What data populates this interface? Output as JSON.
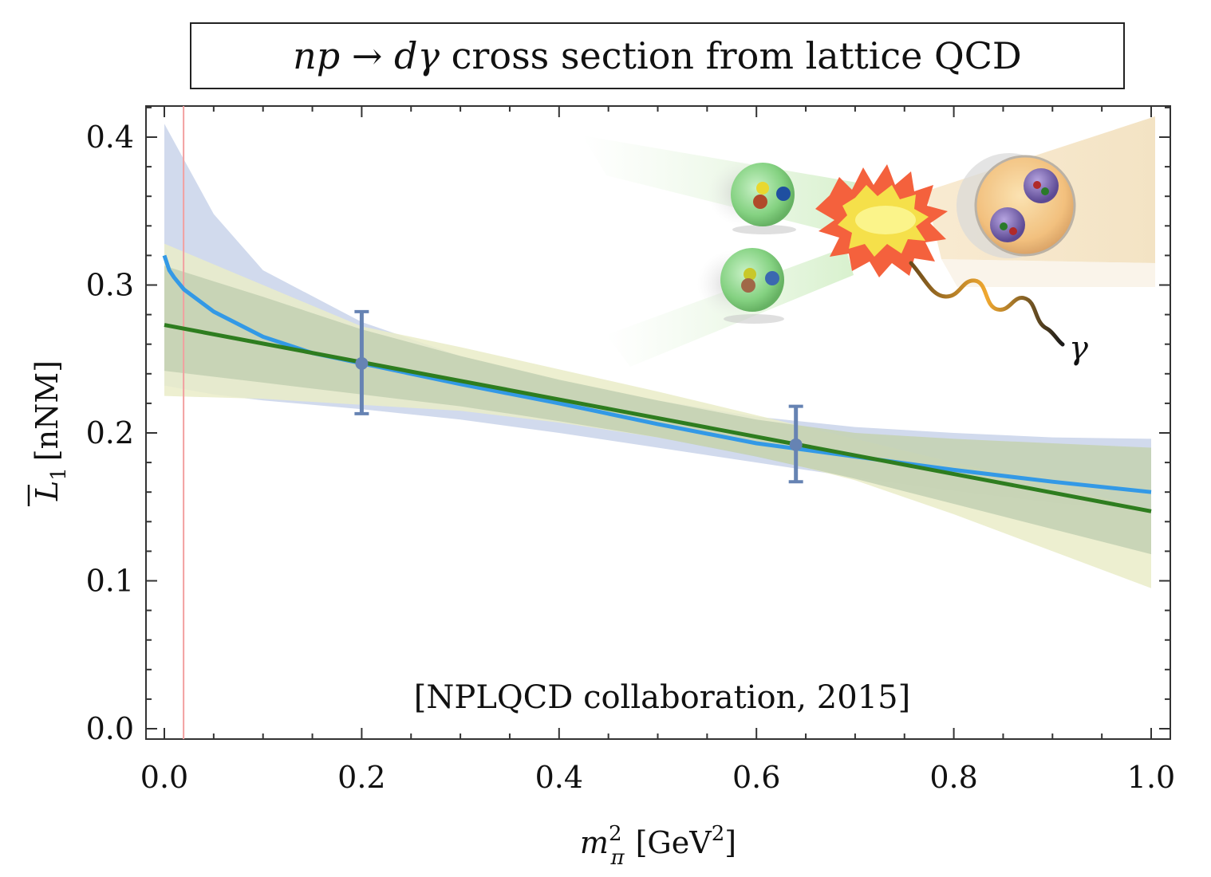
{
  "title": {
    "math_lhs": "np",
    "arrow": "→",
    "math_rhs": "dγ",
    "text": "cross section from lattice QCD"
  },
  "annotation": "[NPLQCD collaboration, 2015]",
  "inset_label": "γ",
  "chart_data": {
    "type": "line",
    "xlabel": "m_π² [GeV²]",
    "xlabel_parts": {
      "m": "m",
      "sub": "π",
      "sup": "2",
      "unit": "[GeV",
      "unit_sup": "2",
      "unit_close": "]"
    },
    "ylabel": "L̄₁ [nNM]",
    "ylabel_parts": {
      "L": "L",
      "sub": "1",
      "unit": "[nNM]"
    },
    "xlim": [
      0.0,
      1.0
    ],
    "ylim": [
      0.0,
      0.42
    ],
    "xticks": [
      "0.0",
      "0.2",
      "0.4",
      "0.6",
      "0.8",
      "1.0"
    ],
    "yticks": [
      "0.0",
      "0.1",
      "0.2",
      "0.3",
      "0.4"
    ],
    "physical_point_x": 0.0195,
    "colors": {
      "blue_curve": "#3399e6",
      "green_line": "#2e7d1f",
      "blue_band": "#c9d4ea",
      "yellow_band": "#eaecc8",
      "overlap_band": "#c4d2b4",
      "data_points": "#6683b3",
      "physical_line": "#f2a0a0"
    },
    "series": [
      {
        "kind": "curve",
        "x": [
          0.0,
          0.005,
          0.01,
          0.02,
          0.05,
          0.1,
          0.15,
          0.2,
          0.3,
          0.4,
          0.5,
          0.6,
          0.7,
          0.8,
          0.9,
          1.0
        ],
        "y": [
          0.32,
          0.31,
          0.305,
          0.297,
          0.282,
          0.265,
          0.254,
          0.247,
          0.233,
          0.22,
          0.206,
          0.193,
          0.184,
          0.175,
          0.167,
          0.16
        ]
      },
      {
        "kind": "line",
        "x": [
          0.0,
          1.0
        ],
        "y": [
          0.273,
          0.147
        ]
      }
    ],
    "bands": [
      {
        "kind": "blue",
        "x": [
          0.0,
          0.05,
          0.1,
          0.2,
          0.3,
          0.4,
          0.5,
          0.6,
          0.7,
          0.8,
          0.9,
          1.0
        ],
        "upper": [
          0.409,
          0.348,
          0.31,
          0.275,
          0.252,
          0.235,
          0.222,
          0.211,
          0.204,
          0.2,
          0.197,
          0.196
        ],
        "lower": [
          0.232,
          0.226,
          0.222,
          0.216,
          0.209,
          0.2,
          0.19,
          0.18,
          0.17,
          0.161,
          0.153,
          0.147
        ]
      },
      {
        "kind": "yellow",
        "x": [
          0.0,
          0.1,
          0.2,
          0.3,
          0.4,
          0.5,
          0.6,
          0.7,
          0.8,
          0.9,
          1.0
        ],
        "upper": [
          0.328,
          0.3,
          0.272,
          0.258,
          0.243,
          0.228,
          0.212,
          0.196,
          0.18,
          0.165,
          0.148
        ],
        "lower": [
          0.225,
          0.223,
          0.219,
          0.215,
          0.207,
          0.197,
          0.185,
          0.168,
          0.145,
          0.12,
          0.095
        ]
      },
      {
        "kind": "overlap",
        "x": [
          0.0,
          0.1,
          0.2,
          0.3,
          0.4,
          0.5,
          0.6,
          0.7,
          0.8,
          0.9,
          1.0
        ],
        "upper": [
          0.313,
          0.292,
          0.27,
          0.252,
          0.236,
          0.222,
          0.209,
          0.2,
          0.196,
          0.193,
          0.19
        ],
        "lower": [
          0.242,
          0.234,
          0.226,
          0.218,
          0.208,
          0.197,
          0.184,
          0.169,
          0.152,
          0.135,
          0.118
        ]
      }
    ],
    "points": [
      {
        "x": 0.2,
        "y": 0.247,
        "yerr_low": 0.213,
        "yerr_high": 0.282
      },
      {
        "x": 0.64,
        "y": 0.192,
        "yerr_low": 0.167,
        "yerr_high": 0.218
      }
    ]
  }
}
